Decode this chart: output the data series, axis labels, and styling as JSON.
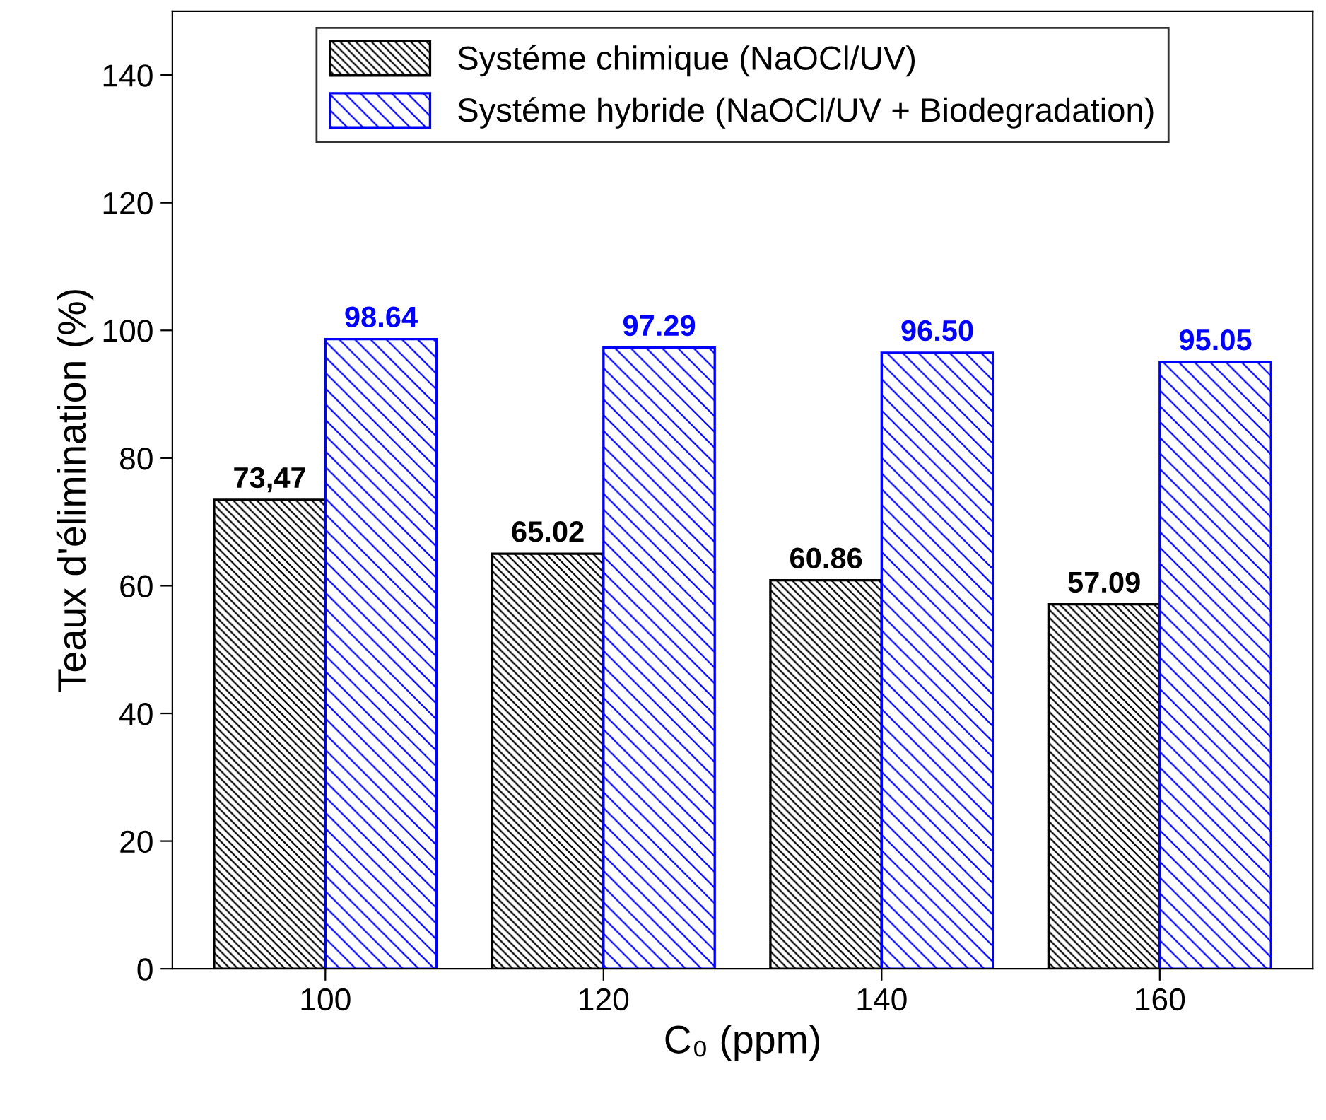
{
  "chart_data": {
    "type": "bar",
    "xlabel": "C₀ (ppm)",
    "ylabel": "Teaux d'élimination (%)",
    "categories": [
      "100",
      "120",
      "140",
      "160"
    ],
    "series": [
      {
        "name": "Systéme chimique (NaOCl/UV)",
        "color": "#000000",
        "values": [
          73.47,
          65.02,
          60.86,
          57.09
        ],
        "value_labels": [
          "73,47",
          "65.02",
          "60.86",
          "57.09"
        ]
      },
      {
        "name": "Systéme hybride (NaOCl/UV + Biodegradation)",
        "color": "#0000ff",
        "values": [
          98.64,
          97.29,
          96.5,
          95.05
        ],
        "value_labels": [
          "98.64",
          "97.29",
          "96.50",
          "95.05"
        ]
      }
    ],
    "ylim": [
      0,
      150
    ],
    "yticks": [
      0,
      20,
      40,
      60,
      80,
      100,
      120,
      140
    ],
    "legend": "top",
    "grid": false
  }
}
